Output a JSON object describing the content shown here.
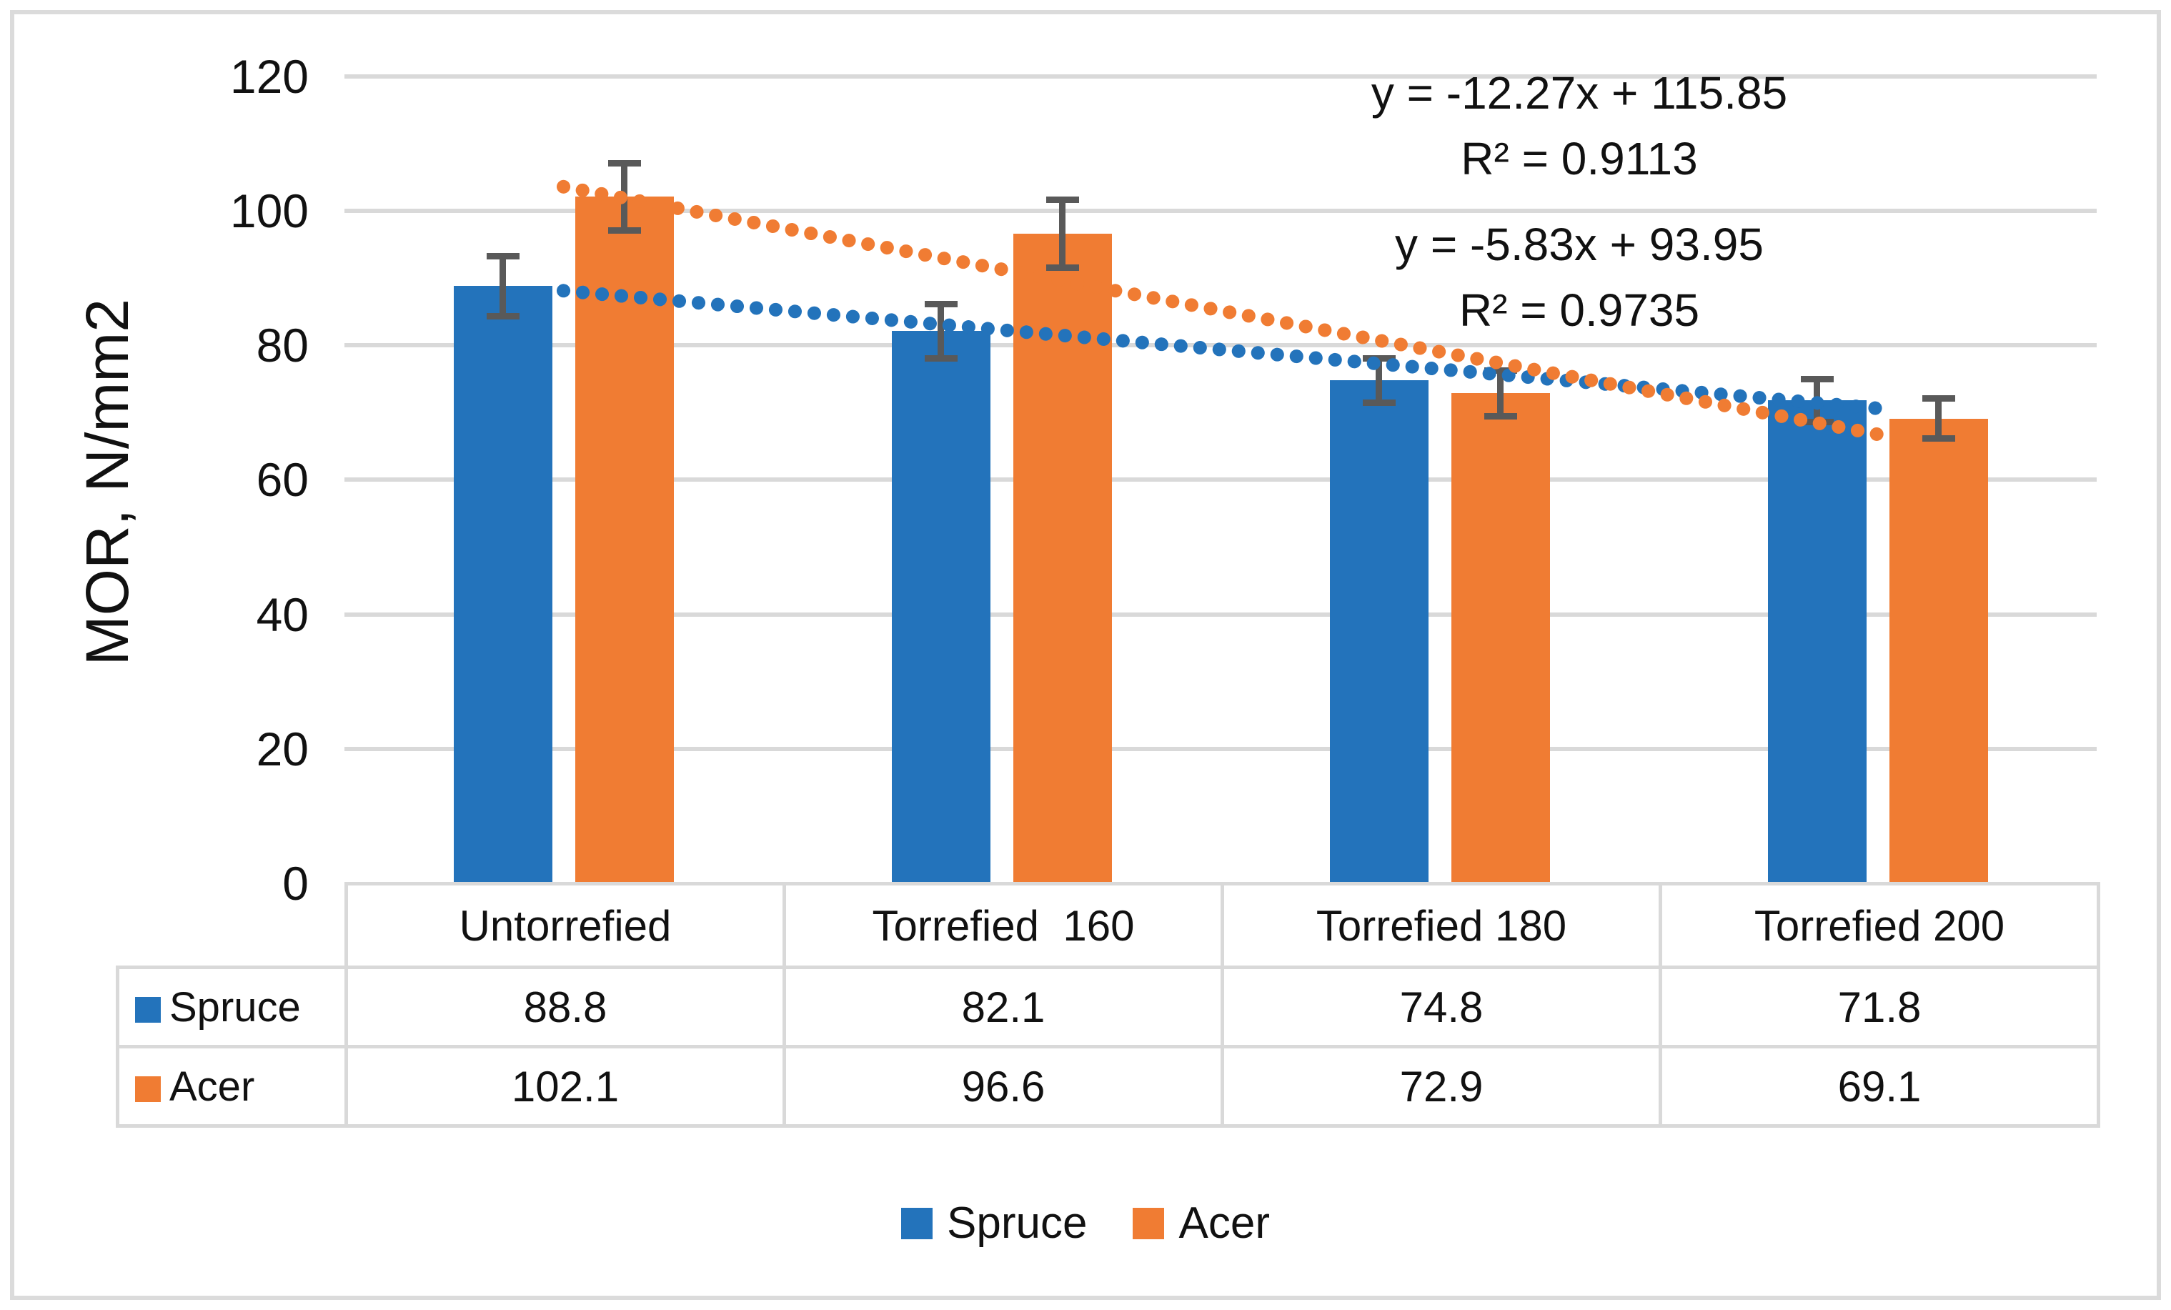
{
  "figure": {
    "y_axis_title": "MOR, N/mm2",
    "equations": [
      {
        "line1": "y = -12.27x + 115.85",
        "line2": "R² = 0.9113"
      },
      {
        "line1": "y = -5.83x + 93.95",
        "line2": "R² = 0.9735"
      }
    ]
  },
  "chart_data": {
    "type": "bar",
    "categories": [
      "Untorrefied",
      "Torrefied  160",
      "Torrefied 180",
      "Torrefied 200"
    ],
    "series": [
      {
        "name": "Spruce",
        "color": "#2373BB",
        "values": [
          88.8,
          82.1,
          74.8,
          71.8
        ],
        "errors": [
          4.5,
          4.0,
          3.3,
          3.2
        ],
        "trendline": {
          "slope": -5.83,
          "intercept": 93.95,
          "equation": "y = -5.83x + 93.95",
          "r2": "R² = 0.9735"
        }
      },
      {
        "name": "Acer",
        "color": "#F07C33",
        "values": [
          102.1,
          96.6,
          72.9,
          69.1
        ],
        "errors": [
          5.0,
          5.0,
          3.4,
          3.0
        ],
        "trendline": {
          "slope": -12.27,
          "intercept": 115.85,
          "equation": "y = -12.27x + 115.85",
          "r2": "R² = 0.9113"
        }
      }
    ],
    "ylabel": "MOR, N/mm2",
    "ylim": [
      0,
      120
    ],
    "ytick_step": 20,
    "yticks": [
      "0",
      "20",
      "40",
      "60",
      "80",
      "100",
      "120"
    ],
    "grid": true,
    "gridline_color": "#D9D9D9",
    "error_bar_color": "#595959",
    "trendline_style": "dotted",
    "legend_position": "bottom",
    "data_table_shown": true
  }
}
